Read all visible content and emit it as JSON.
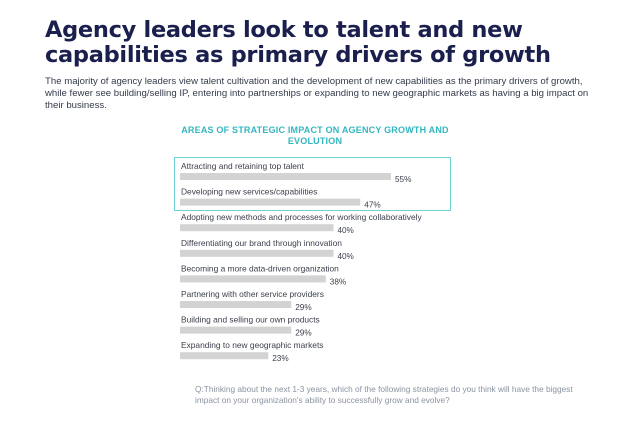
{
  "header": {
    "title": "Agency leaders look to talent and new capabilities as primary drivers of growth",
    "intro": "The majority of agency leaders view talent cultivation and the development of new capabilities as the primary drivers of growth, while fewer see building/selling IP, entering into partnerships or expanding to new geographic markets as having a big impact on their business."
  },
  "chart_data": {
    "type": "bar",
    "title": "AREAS OF STRATEGIC IMPACT ON AGENCY GROWTH AND EVOLUTION",
    "categories": [
      "Attracting and retaining top talent",
      "Developing new services/capabilities",
      "Adopting new methods and processes for working collaboratively",
      "Differentiating our brand through innovation",
      "Becoming a more data-driven organization",
      "Partnering with other service providers",
      "Building and selling our own products",
      "Expanding to new geographic markets"
    ],
    "values": [
      55,
      47,
      40,
      40,
      38,
      29,
      29,
      23
    ],
    "value_labels": [
      "55%",
      "47%",
      "40%",
      "40%",
      "38%",
      "29%",
      "29%",
      "23%"
    ],
    "highlighted": [
      0,
      1
    ],
    "orientation": "horizontal",
    "xlim": [
      0,
      55
    ],
    "grid": false,
    "colors": {
      "bar": "#d3d3d3",
      "highlight_border": "#6fd0d6",
      "title": "#33b6c0"
    }
  },
  "footnote": {
    "question": "Q:Thinking about the next 1-3 years, which of the following strategies do you think will have the biggest impact on your organization's ability to successfully grow and evolve?"
  }
}
